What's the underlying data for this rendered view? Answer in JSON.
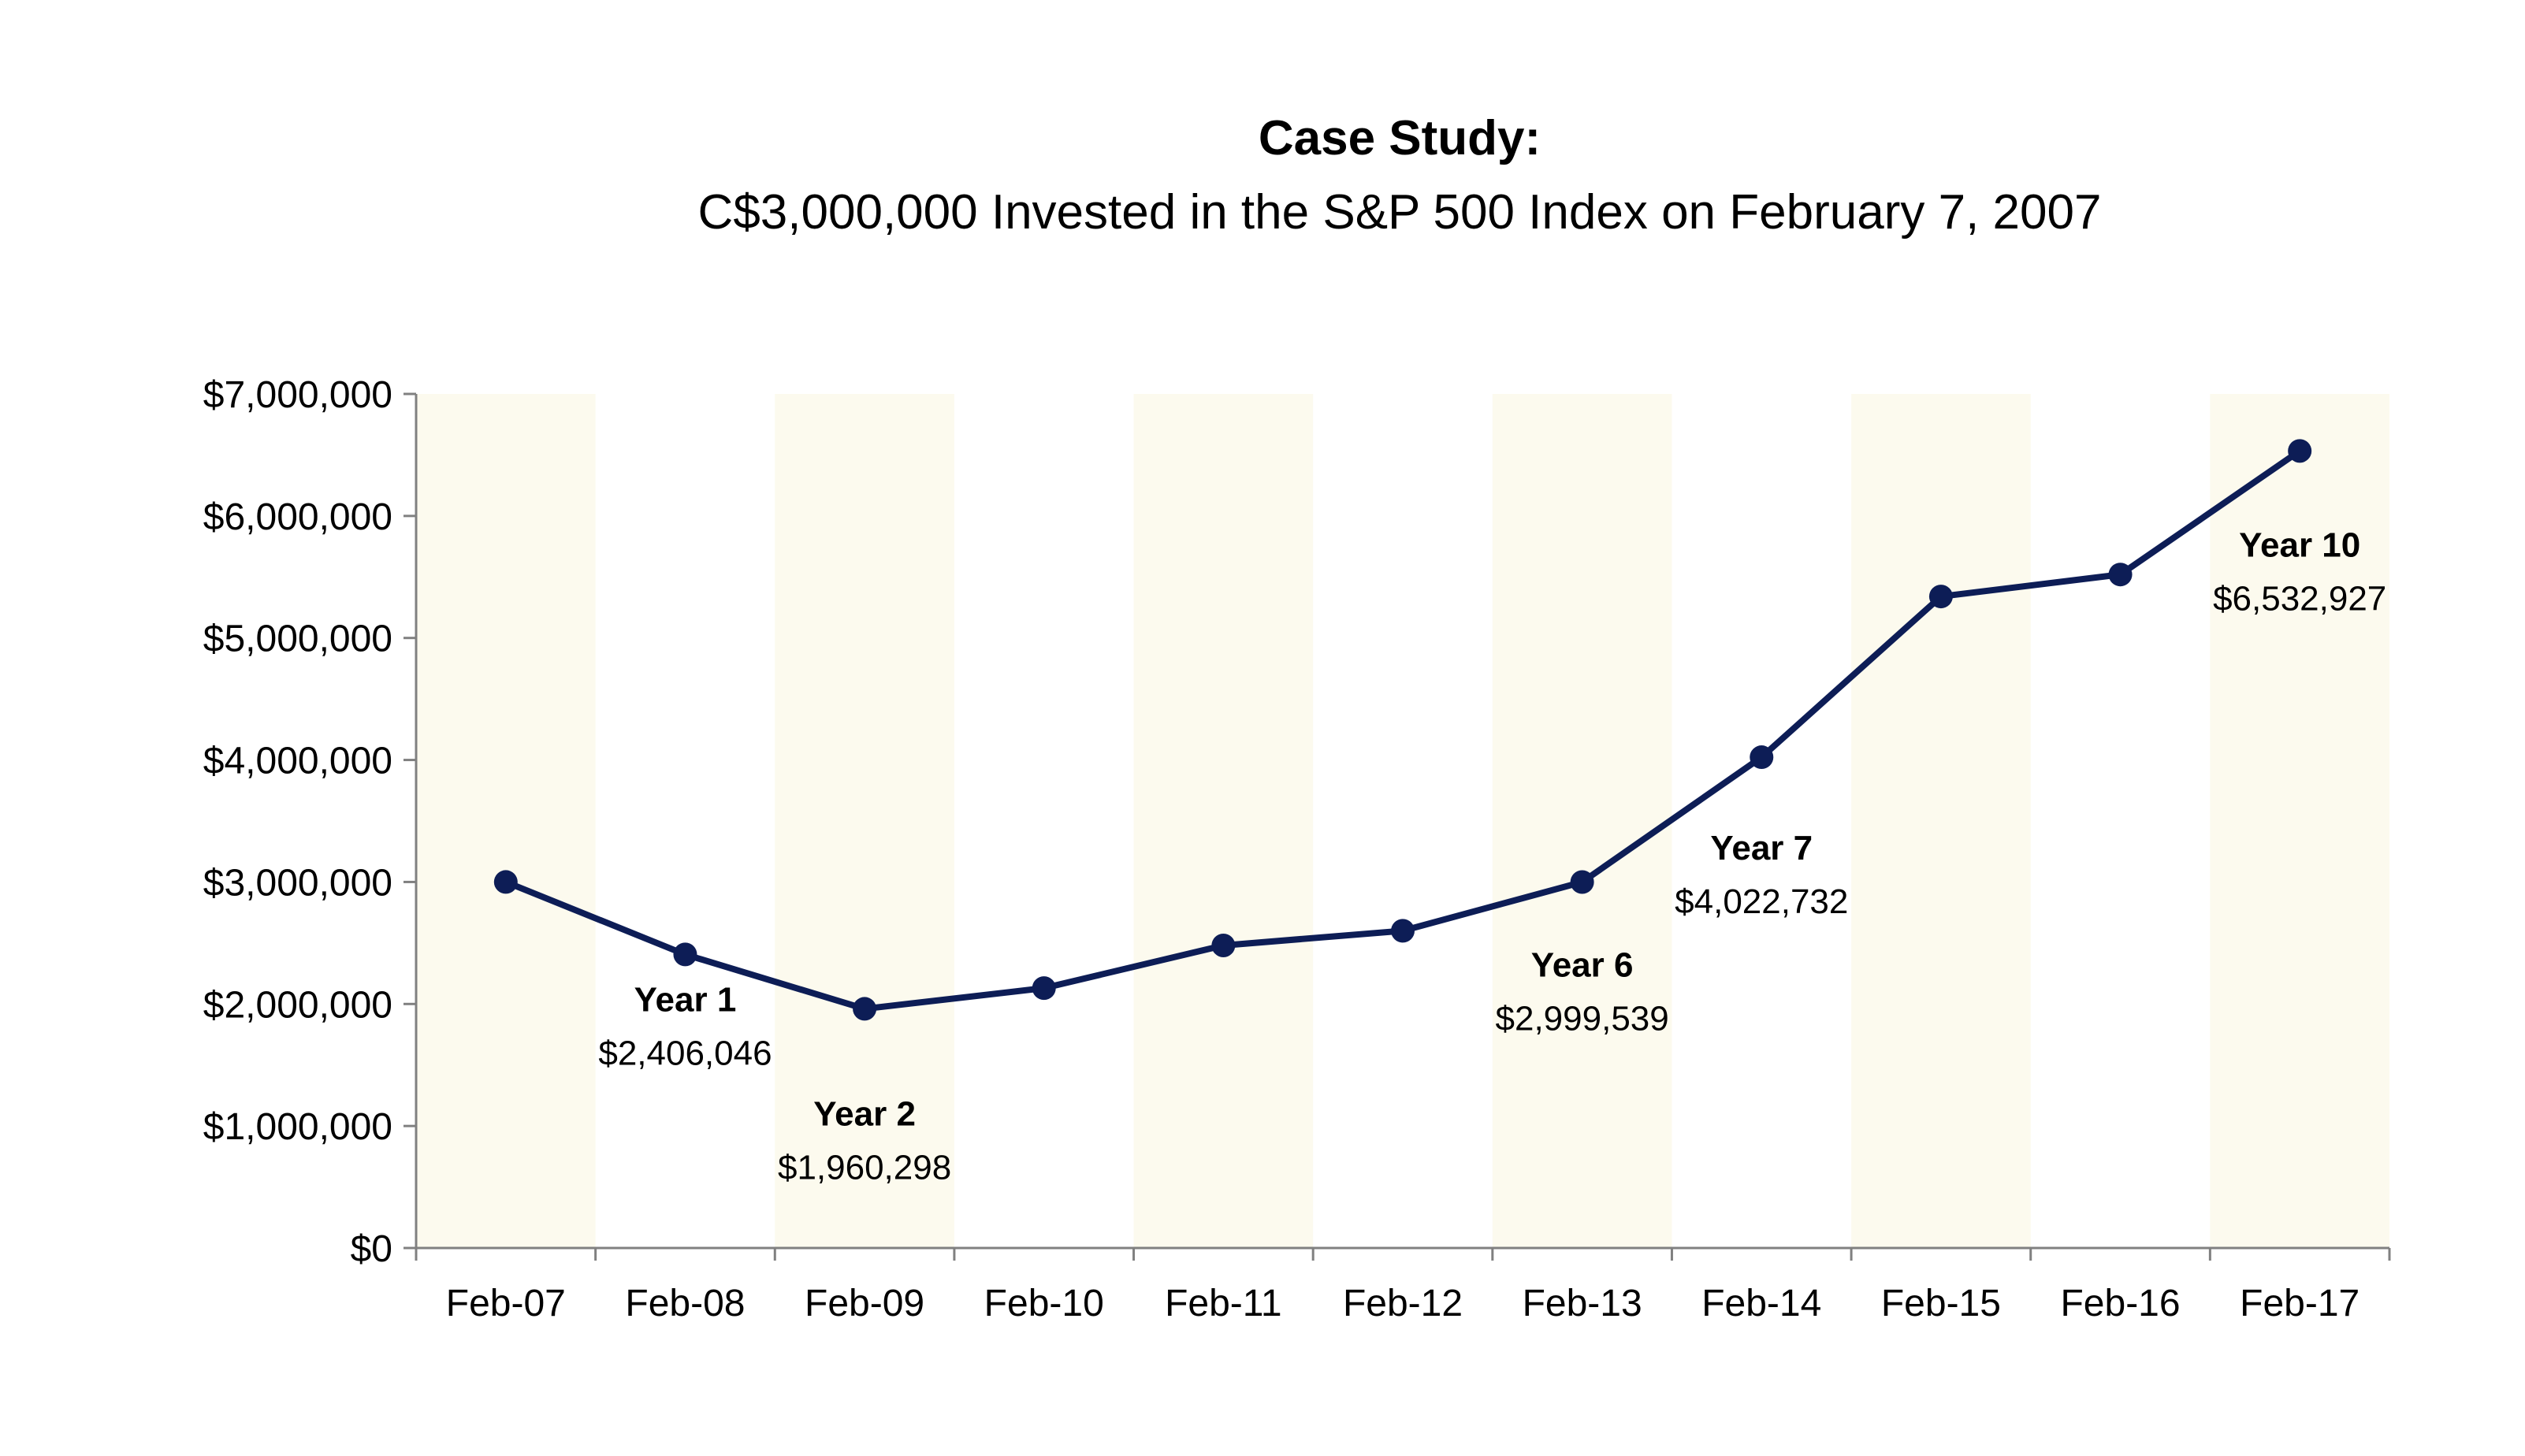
{
  "title": "Case Study:",
  "subtitle": "C$3,000,000 Invested in the S&P 500 Index on February 7, 2007",
  "colors": {
    "line": "#0d1d56",
    "band": "#fcfaee",
    "axis": "#808080"
  },
  "chart_data": {
    "type": "line",
    "title": "Case Study:",
    "subtitle": "C$3,000,000 Invested in the S&P 500 Index on February 7, 2007",
    "xlabel": "",
    "ylabel": "",
    "categories": [
      "Feb-07",
      "Feb-08",
      "Feb-09",
      "Feb-10",
      "Feb-11",
      "Feb-12",
      "Feb-13",
      "Feb-14",
      "Feb-15",
      "Feb-16",
      "Feb-17"
    ],
    "values": [
      3000000,
      2406046,
      1960298,
      2130000,
      2480000,
      2600000,
      2999539,
      4022732,
      5340000,
      5520000,
      6532927
    ],
    "ylim": [
      0,
      7000000
    ],
    "yticks": [
      "$0",
      "$1,000,000",
      "$2,000,000",
      "$3,000,000",
      "$4,000,000",
      "$5,000,000",
      "$6,000,000",
      "$7,000,000"
    ],
    "grid": false,
    "shaded_bands": [
      "Feb-07",
      "Feb-09",
      "Feb-11",
      "Feb-13",
      "Feb-15",
      "Feb-17"
    ],
    "annotations": [
      {
        "index": 1,
        "label": "Year 1",
        "value": "$2,406,046"
      },
      {
        "index": 2,
        "label": "Year 2",
        "value": "$1,960,298"
      },
      {
        "index": 6,
        "label": "Year 6",
        "value": "$2,999,539"
      },
      {
        "index": 7,
        "label": "Year 7",
        "value": "$4,022,732"
      },
      {
        "index": 10,
        "label": "Year 10",
        "value": "$6,532,927"
      }
    ]
  }
}
